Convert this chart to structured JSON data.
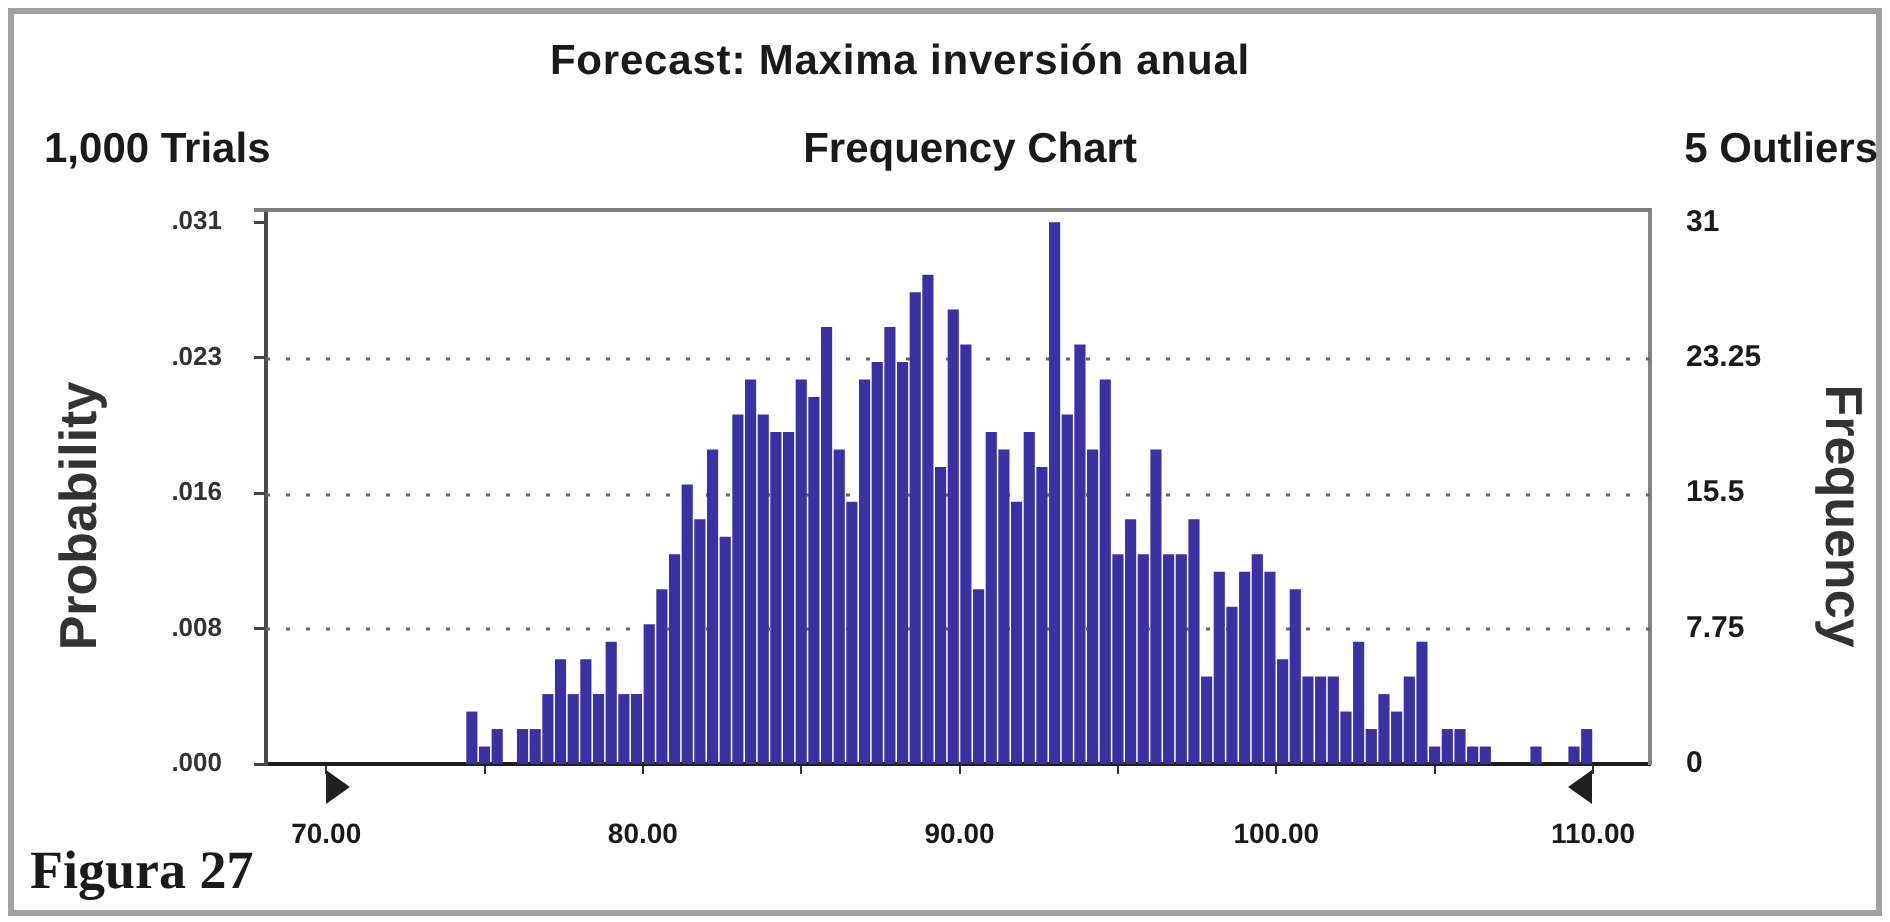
{
  "chart_data": {
    "type": "histogram",
    "title": "Forecast: Maxima inversión anual",
    "subtitle": "Frequency Chart",
    "ylabel": "Probability",
    "y2label": "Frequency",
    "annotations": [
      "1,000 Trials",
      "5 Outliers",
      "Figura 27"
    ],
    "bins": [
      70,
      70.4,
      70.8,
      71.2,
      71.6,
      72,
      72.4,
      72.8,
      73.2,
      73.6,
      74,
      74.4,
      74.8,
      75.2,
      75.6,
      76,
      76.4,
      76.8,
      77.2,
      77.6,
      78,
      78.4,
      78.8,
      79.2,
      79.6,
      80,
      80.4,
      80.8,
      81.2,
      81.6,
      82,
      82.4,
      82.8,
      83.2,
      83.6,
      84,
      84.4,
      84.8,
      85.2,
      85.6,
      86,
      86.4,
      86.8,
      87.2,
      87.6,
      88,
      88.4,
      88.8,
      89.2,
      89.6,
      90,
      90.4,
      90.8,
      91.2,
      91.6,
      92,
      92.4,
      92.8,
      93.2,
      93.6,
      94,
      94.4,
      94.8,
      95.2,
      95.6,
      96,
      96.4,
      96.8,
      97.2,
      97.6,
      98,
      98.4,
      98.8,
      99.2,
      99.6,
      100,
      100.4,
      100.8,
      101.2,
      101.6,
      102,
      102.4,
      102.8,
      103.2,
      103.6,
      104,
      104.4,
      104.8,
      105.2,
      105.6,
      106,
      106.4,
      106.8,
      107.2,
      107.6,
      108,
      108.4,
      108.8,
      109.2,
      109.6,
      110
    ],
    "series": [
      {
        "color": "#3a31a2",
        "axis": "y2",
        "values": [
          0,
          0,
          0,
          0,
          0,
          0,
          0,
          0,
          0,
          0,
          0,
          3,
          1,
          2,
          0,
          2,
          2,
          4,
          6,
          4,
          6,
          4,
          7,
          4,
          4,
          8,
          10,
          12,
          16,
          14,
          18,
          13,
          20,
          22,
          20,
          19,
          19,
          22,
          21,
          25,
          18,
          15,
          22,
          23,
          25,
          23,
          27,
          28,
          17,
          26,
          24,
          10,
          19,
          18,
          15,
          19,
          17,
          31,
          20,
          24,
          18,
          22,
          12,
          14,
          12,
          18,
          12,
          12,
          14,
          5,
          11,
          9,
          11,
          12,
          11,
          6,
          10,
          5,
          5,
          5,
          3,
          7,
          2,
          4,
          3,
          5,
          7,
          1,
          2,
          2,
          1,
          1,
          0,
          0,
          0,
          1,
          0,
          0,
          1,
          2
        ]
      }
    ],
    "xlim": [
      68.1,
      111.8
    ],
    "xticks": [
      {
        "value": 70,
        "label": "70.00"
      },
      {
        "value": 75,
        "label": null
      },
      {
        "value": 80,
        "label": "80.00"
      },
      {
        "value": 85,
        "label": null
      },
      {
        "value": 90,
        "label": "90.00"
      },
      {
        "value": 95,
        "label": null
      },
      {
        "value": 100,
        "label": "100.00"
      },
      {
        "value": 105,
        "label": null
      },
      {
        "value": 110,
        "label": "110.00"
      }
    ],
    "ylim": [
      0,
      0.0317
    ],
    "yticks": [
      {
        "value": 0,
        "label": ".000"
      },
      {
        "value": 0.00775,
        "label": ".008"
      },
      {
        "value": 0.0155,
        "label": ".016"
      },
      {
        "value": 0.02325,
        "label": ".023"
      },
      {
        "value": 0.031,
        "label": ".031"
      }
    ],
    "y2lim": [
      0,
      31.7
    ],
    "y2ticks": [
      0,
      7.75,
      15.5,
      23.25,
      31
    ],
    "grid": "y",
    "legend": false
  }
}
